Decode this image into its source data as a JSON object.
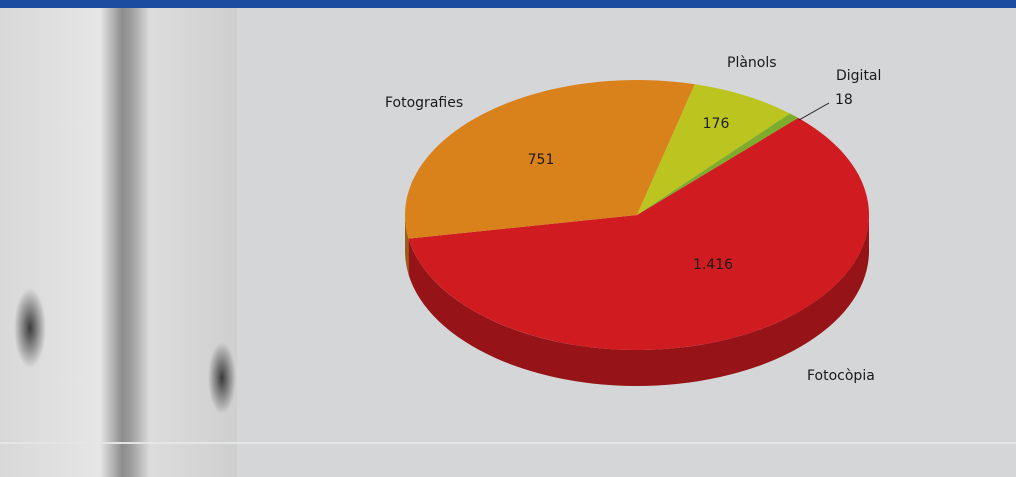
{
  "chart_data": {
    "type": "pie",
    "categories": [
      "Fotocòpia",
      "Fotografies",
      "Plànols",
      "Digital"
    ],
    "values": [
      1416,
      751,
      176,
      18
    ],
    "value_labels": [
      "1.416",
      "751",
      "176",
      "18"
    ],
    "colors": [
      "#d01b21",
      "#d9821c",
      "#bcc51f",
      "#7dad2d"
    ]
  }
}
